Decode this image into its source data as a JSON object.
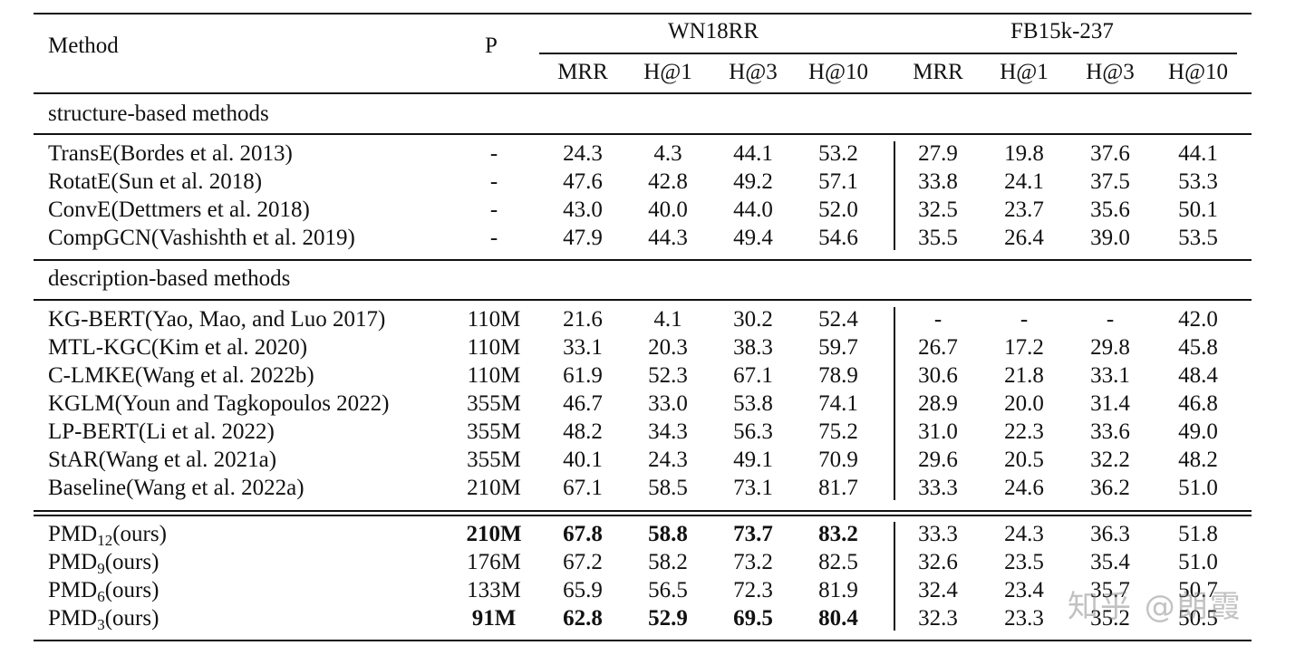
{
  "header": {
    "method": "Method",
    "p": "P",
    "groups": [
      "WN18RR",
      "FB15k-237"
    ],
    "metrics": [
      "MRR",
      "H@1",
      "H@3",
      "H@10",
      "MRR",
      "H@1",
      "H@3",
      "H@10"
    ]
  },
  "sections": [
    {
      "label": "structure-based methods",
      "rows": [
        {
          "method": "TransE(Bordes et al. 2013)",
          "p": "-",
          "values": [
            "24.3",
            "4.3",
            "44.1",
            "53.2",
            "27.9",
            "19.8",
            "37.6",
            "44.1"
          ]
        },
        {
          "method": "RotatE(Sun et al. 2018)",
          "p": "-",
          "values": [
            "47.6",
            "42.8",
            "49.2",
            "57.1",
            "33.8",
            "24.1",
            "37.5",
            "53.3"
          ]
        },
        {
          "method": "ConvE(Dettmers et al. 2018)",
          "p": "-",
          "values": [
            "43.0",
            "40.0",
            "44.0",
            "52.0",
            "32.5",
            "23.7",
            "35.6",
            "50.1"
          ]
        },
        {
          "method": "CompGCN(Vashishth et al. 2019)",
          "p": "-",
          "values": [
            "47.9",
            "44.3",
            "49.4",
            "54.6",
            "35.5",
            "26.4",
            "39.0",
            "53.5"
          ]
        }
      ]
    },
    {
      "label": "description-based methods",
      "rows": [
        {
          "method": "KG-BERT(Yao, Mao, and Luo 2017)",
          "p": "110M",
          "values": [
            "21.6",
            "4.1",
            "30.2",
            "52.4",
            "-",
            "-",
            "-",
            "42.0"
          ]
        },
        {
          "method": "MTL-KGC(Kim et al. 2020)",
          "p": "110M",
          "values": [
            "33.1",
            "20.3",
            "38.3",
            "59.7",
            "26.7",
            "17.2",
            "29.8",
            "45.8"
          ]
        },
        {
          "method": "C-LMKE(Wang et al. 2022b)",
          "p": "110M",
          "values": [
            "61.9",
            "52.3",
            "67.1",
            "78.9",
            "30.6",
            "21.8",
            "33.1",
            "48.4"
          ]
        },
        {
          "method": "KGLM(Youn and Tagkopoulos 2022)",
          "p": "355M",
          "values": [
            "46.7",
            "33.0",
            "53.8",
            "74.1",
            "28.9",
            "20.0",
            "31.4",
            "46.8"
          ]
        },
        {
          "method": "LP-BERT(Li et al. 2022)",
          "p": "355M",
          "values": [
            "48.2",
            "34.3",
            "56.3",
            "75.2",
            "31.0",
            "22.3",
            "33.6",
            "49.0"
          ]
        },
        {
          "method": "StAR(Wang et al. 2021a)",
          "p": "355M",
          "values": [
            "40.1",
            "24.3",
            "49.1",
            "70.9",
            "29.6",
            "20.5",
            "32.2",
            "48.2"
          ]
        },
        {
          "method": "Baseline(Wang et al. 2022a)",
          "p": "210M",
          "values": [
            "67.1",
            "58.5",
            "73.1",
            "81.7",
            "33.3",
            "24.6",
            "36.2",
            "51.0"
          ]
        }
      ]
    }
  ],
  "ours": [
    {
      "name": "PMD",
      "sub": "12",
      "suffix": "(ours)",
      "p": "210M",
      "p_bold": true,
      "values": [
        "67.8",
        "58.8",
        "73.7",
        "83.2",
        "33.3",
        "24.3",
        "36.3",
        "51.8"
      ],
      "bold": [
        true,
        true,
        true,
        true,
        false,
        false,
        false,
        false
      ]
    },
    {
      "name": "PMD",
      "sub": "9",
      "suffix": "(ours)",
      "p": "176M",
      "p_bold": false,
      "values": [
        "67.2",
        "58.2",
        "73.2",
        "82.5",
        "32.6",
        "23.5",
        "35.4",
        "51.0"
      ],
      "bold": [
        false,
        false,
        false,
        false,
        false,
        false,
        false,
        false
      ]
    },
    {
      "name": "PMD",
      "sub": "6",
      "suffix": "(ours)",
      "p": "133M",
      "p_bold": false,
      "values": [
        "65.9",
        "56.5",
        "72.3",
        "81.9",
        "32.4",
        "23.4",
        "35.7",
        "50.7"
      ],
      "bold": [
        false,
        false,
        false,
        false,
        false,
        false,
        false,
        false
      ]
    },
    {
      "name": "PMD",
      "sub": "3",
      "suffix": "(ours)",
      "p": "91M",
      "p_bold": true,
      "values": [
        "62.8",
        "52.9",
        "69.5",
        "80.4",
        "32.3",
        "23.3",
        "35.2",
        "50.5"
      ],
      "bold": [
        true,
        true,
        true,
        true,
        false,
        false,
        false,
        false
      ]
    }
  ],
  "watermark": "知乎 @朗霞"
}
